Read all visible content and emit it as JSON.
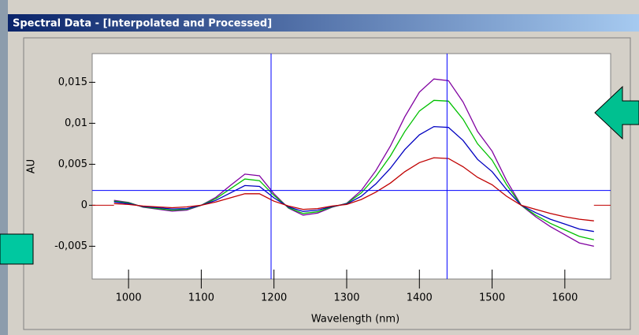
{
  "window": {
    "title": "Spectral Data - [Interpolated and Processed]"
  },
  "chart_data": {
    "type": "line",
    "xlabel": "Wavelength (nm)",
    "ylabel": "AU",
    "x": [
      980,
      1000,
      1020,
      1040,
      1060,
      1080,
      1100,
      1120,
      1140,
      1160,
      1180,
      1200,
      1220,
      1240,
      1260,
      1280,
      1300,
      1320,
      1340,
      1360,
      1380,
      1400,
      1420,
      1440,
      1460,
      1480,
      1500,
      1520,
      1540,
      1560,
      1580,
      1600,
      1620,
      1640
    ],
    "series": [
      {
        "color": "#8000a0",
        "values": [
          0.0006,
          0.00036,
          -0.00024,
          -0.00048,
          -0.00072,
          -0.0006,
          0,
          0.00096,
          0.0024,
          0.0038,
          0.0036,
          0.0014,
          -0.00036,
          -0.0012,
          -0.00096,
          -0.00024,
          0.00024,
          0.0018,
          0.0042,
          0.0072,
          0.0108,
          0.0138,
          0.0154,
          0.0152,
          0.0126,
          0.009,
          0.0066,
          0.003,
          0,
          -0.0014,
          -0.0026,
          -0.0036,
          -0.0046,
          -0.005
        ]
      },
      {
        "color": "#00c000",
        "values": [
          0.0005,
          0.0003,
          -0.0002,
          -0.0004,
          -0.0006,
          -0.0005,
          0,
          0.0008,
          0.002,
          0.0032,
          0.003,
          0.0012,
          -0.0003,
          -0.001,
          -0.0008,
          -0.0002,
          0.0002,
          0.0015,
          0.0035,
          0.006,
          0.009,
          0.0115,
          0.0128,
          0.0127,
          0.0105,
          0.0075,
          0.0055,
          0.0025,
          0,
          -0.0012,
          -0.0022,
          -0.003,
          -0.0038,
          -0.0042
        ]
      },
      {
        "color": "#0000c0",
        "values": [
          0.0004,
          0.0002,
          -0.00015,
          -0.0003,
          -0.00045,
          -0.0004,
          0,
          0.0006,
          0.0015,
          0.0024,
          0.0023,
          0.0009,
          -0.0002,
          -0.00075,
          -0.0006,
          -0.00015,
          0.00015,
          0.0011,
          0.0026,
          0.0045,
          0.0068,
          0.0086,
          0.0096,
          0.0095,
          0.0079,
          0.0056,
          0.0041,
          0.0019,
          0,
          -0.0009,
          -0.0017,
          -0.0023,
          -0.0029,
          -0.0032
        ]
      },
      {
        "color": "#c00000",
        "values": [
          0.0002,
          0.0001,
          -0.0001,
          -0.0002,
          -0.0003,
          -0.0002,
          0,
          0.0004,
          0.0009,
          0.0014,
          0.0014,
          0.0005,
          -0.0001,
          -0.0005,
          -0.0004,
          -0.0001,
          0.0001,
          0.0007,
          0.0016,
          0.0027,
          0.0041,
          0.0052,
          0.0058,
          0.0057,
          0.0047,
          0.0034,
          0.0025,
          0.0011,
          0,
          -0.0005,
          -0.001,
          -0.0014,
          -0.0017,
          -0.0019
        ]
      }
    ],
    "xlim": [
      950,
      1663
    ],
    "xticks": [
      1000,
      1100,
      1200,
      1300,
      1400,
      1500,
      1600
    ],
    "ylim": [
      -0.009,
      0.0185
    ],
    "yticks": [
      {
        "value": -0.005,
        "label": "-0,005"
      },
      0,
      {
        "value": 0.005,
        "label": "0,005"
      },
      {
        "value": 0.01,
        "label": "0,01"
      },
      {
        "value": 0.015,
        "label": "0,015"
      }
    ],
    "cursor": {
      "x": [
        1196,
        1438
      ],
      "y": 0.0018
    },
    "cursor_color": "#0000ff",
    "baseline_color": "#c00000"
  }
}
